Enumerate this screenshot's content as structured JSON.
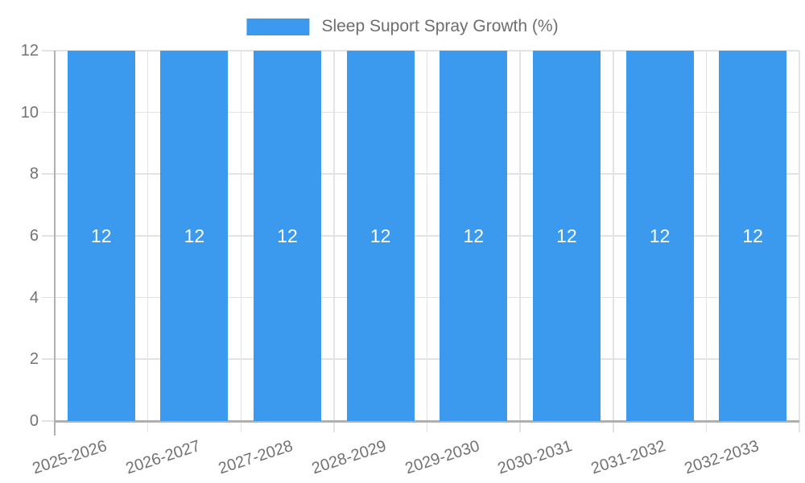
{
  "chart_data": {
    "type": "bar",
    "title": "",
    "legend": {
      "position": "top",
      "label": "Sleep Suport Spray Growth (%)"
    },
    "categories": [
      "2025-2026",
      "2026-2027",
      "2027-2028",
      "2028-2029",
      "2029-2030",
      "2030-2031",
      "2031-2032",
      "2032-2033"
    ],
    "series": [
      {
        "name": "Sleep Suport Spray Growth (%)",
        "values": [
          12,
          12,
          12,
          12,
          12,
          12,
          12,
          12
        ]
      }
    ],
    "bar_value_labels": [
      "12",
      "12",
      "12",
      "12",
      "12",
      "12",
      "12",
      "12"
    ],
    "xlabel": "",
    "ylabel": "",
    "ylim": [
      0,
      12
    ],
    "yticks": [
      0,
      2,
      4,
      6,
      8,
      10,
      12
    ],
    "grid": true,
    "x_label_rotation_deg": -18,
    "colors": {
      "bar": "#3b99ee",
      "grid": "#e3e3e3",
      "axis": "#b0b0b0",
      "tick_text": "#737373",
      "legend_text": "#6e6e6e",
      "bar_label": "#ffffff",
      "background": "#ffffff"
    }
  }
}
